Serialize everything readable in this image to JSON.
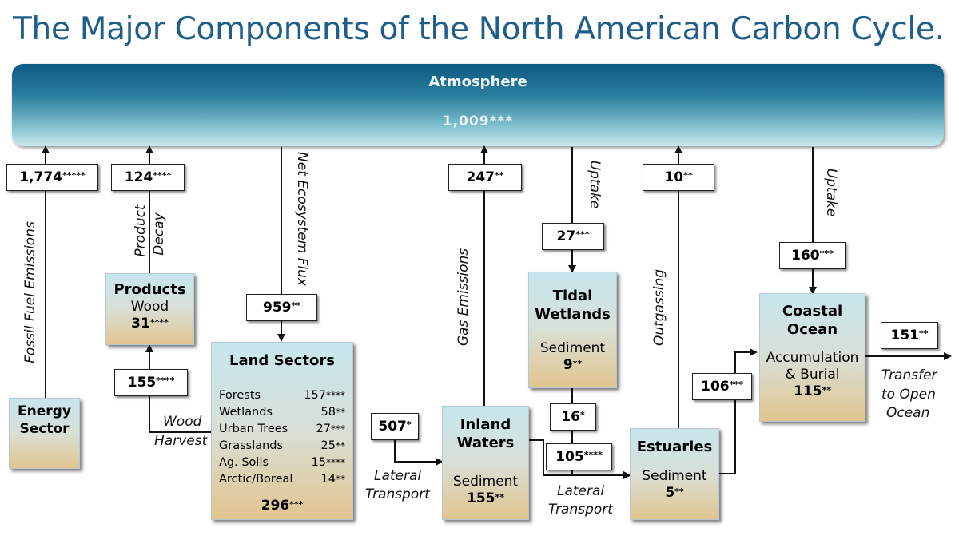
{
  "title": "The Major Components of the North American Carbon Cycle.",
  "atmosphere": {
    "name": "Atmosphere",
    "value": "1,009***"
  },
  "boxes": {
    "energy": {
      "title": "Energy Sector"
    },
    "products": {
      "title": "Products",
      "subtitle": "Wood",
      "value": "31****"
    },
    "land": {
      "title": "Land Sectors",
      "rows": [
        {
          "name": "Forests",
          "value": "157****"
        },
        {
          "name": "Wetlands",
          "value": "58**"
        },
        {
          "name": "Urban Trees",
          "value": "27***"
        },
        {
          "name": "Grasslands",
          "value": "25**"
        },
        {
          "name": "Ag. Soils",
          "value": "15****"
        },
        {
          "name": "Arctic/Boreal",
          "value": "14**"
        }
      ],
      "total": "296***"
    },
    "inland": {
      "title_line1": "Inland",
      "title_line2": "Waters",
      "subtitle": "Sediment",
      "value": "155**"
    },
    "tidal": {
      "title_line1": "Tidal",
      "title_line2": "Wetlands",
      "subtitle": "Sediment",
      "value": "9**"
    },
    "estuaries": {
      "title": "Estuaries",
      "subtitle": "Sediment",
      "value": "5**"
    },
    "coastal": {
      "title_line1": "Coastal",
      "title_line2": "Ocean",
      "subtitle_line1": "Accumulation",
      "subtitle_line2": "& Burial",
      "value": "115**"
    }
  },
  "fluxes": {
    "fossil": "1,774*****",
    "product_decay": "124****",
    "net_ecosystem": "959**",
    "wood_harvest": "155****",
    "lateral_land": "507*",
    "gas_emissions": "247**",
    "tidal_uptake": "27***",
    "tidal_estuary": "16*",
    "lateral_inland": "105****",
    "outgassing": "10**",
    "coastal_uptake": "160***",
    "estuary_coastal": "106***",
    "open_ocean": "151**"
  },
  "labels": {
    "fossil": "Fossil Fuel Emissions",
    "product_decay_1": "Product",
    "product_decay_2": "Decay",
    "net_ecosystem": "Net Ecosystem Flux",
    "wood_harvest_1": "Wood",
    "wood_harvest_2": "Harvest",
    "lateral_1_1": "Lateral",
    "lateral_1_2": "Transport",
    "gas_emissions": "Gas Emissions",
    "tidal_uptake": "Uptake",
    "lateral_2_1": "Lateral",
    "lateral_2_2": "Transport",
    "outgassing": "Outgassing",
    "coastal_uptake": "Uptake",
    "transfer_1": "Transfer",
    "transfer_2": "to Open",
    "transfer_3": "Ocean"
  }
}
